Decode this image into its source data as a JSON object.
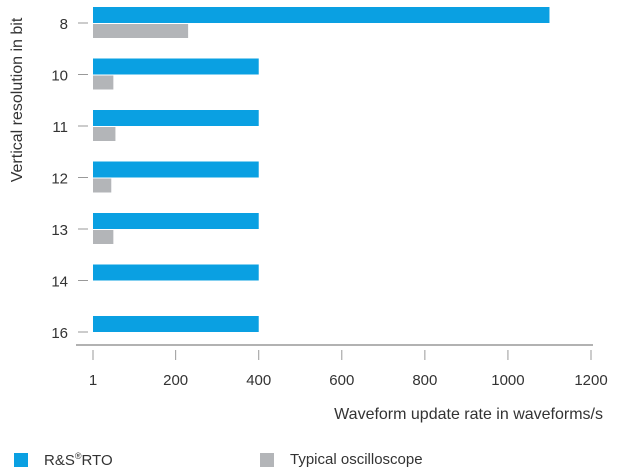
{
  "chart_data": {
    "type": "bar",
    "orientation": "horizontal",
    "categories": [
      "8",
      "10",
      "11",
      "12",
      "13",
      "14",
      "16"
    ],
    "series": [
      {
        "name": "R&S®RTO",
        "color": "#0aa0e2",
        "values": [
          1100,
          400,
          400,
          400,
          400,
          400,
          400
        ]
      },
      {
        "name": "Typical oscilloscope",
        "color": "#b3b5b8",
        "values": [
          230,
          50,
          55,
          45,
          50,
          null,
          null
        ]
      }
    ],
    "xlabel": "Waveform update rate in waveforms/s",
    "ylabel": "Vertical resolution in bit",
    "xticks": [
      "1",
      "200",
      "400",
      "600",
      "800",
      "1000",
      "1200"
    ],
    "xlim": [
      1,
      1200
    ],
    "grid": false,
    "legend_position": "bottom-left"
  },
  "legend": {
    "rto_prefix": "R&S",
    "rto_reg": "®",
    "rto_suffix": "RTO",
    "typical": "Typical oscilloscope"
  }
}
